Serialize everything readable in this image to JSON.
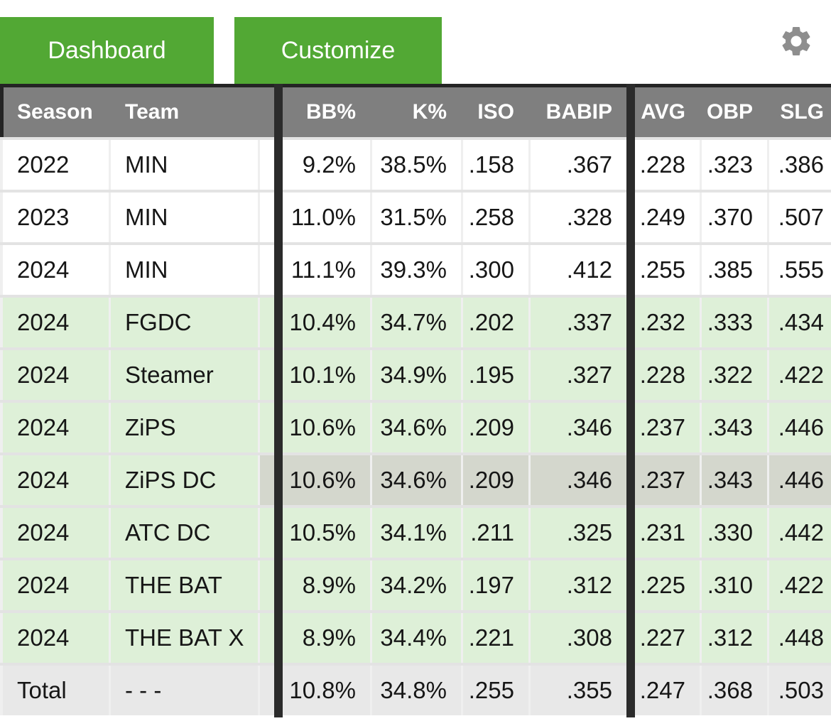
{
  "toolbar": {
    "dashboard_label": "Dashboard",
    "customize_label": "Customize",
    "settings_icon": "gear-icon"
  },
  "colors": {
    "accent_green": "#52a834",
    "projection_row_green": "#def0d8",
    "highlight_row_gray": "#d4d7cd",
    "total_row_gray": "#e8e8e8",
    "header_gray": "#7f7f7f",
    "section_bar_black": "#2b2b2b",
    "gear_gray": "#8e8e8e"
  },
  "table": {
    "header": {
      "season": "Season",
      "team": "Team",
      "bb": "BB%",
      "k": "K%",
      "iso": "ISO",
      "babip": "BABIP",
      "avg": "AVG",
      "obp": "OBP",
      "slg": "SLG"
    },
    "rows": [
      {
        "kind": "mlb",
        "season": "2022",
        "team": "MIN",
        "bb": "9.2%",
        "k": "38.5%",
        "iso": ".158",
        "babip": ".367",
        "avg": ".228",
        "obp": ".323",
        "slg": ".386"
      },
      {
        "kind": "mlb",
        "season": "2023",
        "team": "MIN",
        "bb": "11.0%",
        "k": "31.5%",
        "iso": ".258",
        "babip": ".328",
        "avg": ".249",
        "obp": ".370",
        "slg": ".507"
      },
      {
        "kind": "mlb",
        "season": "2024",
        "team": "MIN",
        "bb": "11.1%",
        "k": "39.3%",
        "iso": ".300",
        "babip": ".412",
        "avg": ".255",
        "obp": ".385",
        "slg": ".555"
      },
      {
        "kind": "proj",
        "season": "2024",
        "team": "FGDC",
        "bb": "10.4%",
        "k": "34.7%",
        "iso": ".202",
        "babip": ".337",
        "avg": ".232",
        "obp": ".333",
        "slg": ".434"
      },
      {
        "kind": "proj",
        "season": "2024",
        "team": "Steamer",
        "bb": "10.1%",
        "k": "34.9%",
        "iso": ".195",
        "babip": ".327",
        "avg": ".228",
        "obp": ".322",
        "slg": ".422"
      },
      {
        "kind": "proj",
        "season": "2024",
        "team": "ZiPS",
        "bb": "10.6%",
        "k": "34.6%",
        "iso": ".209",
        "babip": ".346",
        "avg": ".237",
        "obp": ".343",
        "slg": ".446"
      },
      {
        "kind": "highlight",
        "season": "2024",
        "team": "ZiPS DC",
        "bb": "10.6%",
        "k": "34.6%",
        "iso": ".209",
        "babip": ".346",
        "avg": ".237",
        "obp": ".343",
        "slg": ".446"
      },
      {
        "kind": "proj",
        "season": "2024",
        "team": "ATC DC",
        "bb": "10.5%",
        "k": "34.1%",
        "iso": ".211",
        "babip": ".325",
        "avg": ".231",
        "obp": ".330",
        "slg": ".442"
      },
      {
        "kind": "proj",
        "season": "2024",
        "team": "THE BAT",
        "bb": "8.9%",
        "k": "34.2%",
        "iso": ".197",
        "babip": ".312",
        "avg": ".225",
        "obp": ".310",
        "slg": ".422"
      },
      {
        "kind": "proj",
        "season": "2024",
        "team": "THE BAT X",
        "bb": "8.9%",
        "k": "34.4%",
        "iso": ".221",
        "babip": ".308",
        "avg": ".227",
        "obp": ".312",
        "slg": ".448"
      },
      {
        "kind": "total",
        "season": "Total",
        "team": "- - -",
        "bb": "10.8%",
        "k": "34.8%",
        "iso": ".255",
        "babip": ".355",
        "avg": ".247",
        "obp": ".368",
        "slg": ".503"
      }
    ]
  }
}
